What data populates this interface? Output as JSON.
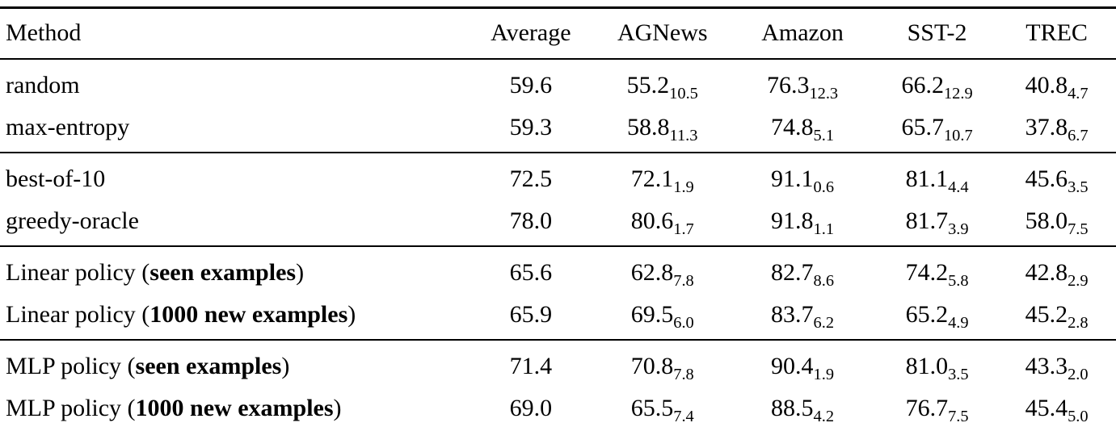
{
  "page": {
    "background": "#ffffff",
    "text_color": "#000000"
  },
  "table": {
    "columns": [
      {
        "label": "Method",
        "align": "left"
      },
      {
        "label": "Average",
        "align": "center"
      },
      {
        "label": "AGNews",
        "align": "center"
      },
      {
        "label": "Amazon",
        "align": "center"
      },
      {
        "label": "SST-2",
        "align": "center"
      },
      {
        "label": "TREC",
        "align": "center"
      }
    ],
    "groups": [
      {
        "rows": [
          {
            "method": [
              {
                "text": "random",
                "bold": false
              }
            ],
            "values": [
              {
                "main": "59.6",
                "sub": ""
              },
              {
                "main": "55.2",
                "sub": "10.5"
              },
              {
                "main": "76.3",
                "sub": "12.3"
              },
              {
                "main": "66.2",
                "sub": "12.9"
              },
              {
                "main": "40.8",
                "sub": "4.7"
              }
            ]
          },
          {
            "method": [
              {
                "text": "max-entropy",
                "bold": false
              }
            ],
            "values": [
              {
                "main": "59.3",
                "sub": ""
              },
              {
                "main": "58.8",
                "sub": "11.3"
              },
              {
                "main": "74.8",
                "sub": "5.1"
              },
              {
                "main": "65.7",
                "sub": "10.7"
              },
              {
                "main": "37.8",
                "sub": "6.7"
              }
            ]
          }
        ]
      },
      {
        "rows": [
          {
            "method": [
              {
                "text": "best-of-10",
                "bold": false
              }
            ],
            "values": [
              {
                "main": "72.5",
                "sub": ""
              },
              {
                "main": "72.1",
                "sub": "1.9"
              },
              {
                "main": "91.1",
                "sub": "0.6"
              },
              {
                "main": "81.1",
                "sub": "4.4"
              },
              {
                "main": "45.6",
                "sub": "3.5"
              }
            ]
          },
          {
            "method": [
              {
                "text": "greedy-oracle",
                "bold": false
              }
            ],
            "values": [
              {
                "main": "78.0",
                "sub": ""
              },
              {
                "main": "80.6",
                "sub": "1.7"
              },
              {
                "main": "91.8",
                "sub": "1.1"
              },
              {
                "main": "81.7",
                "sub": "3.9"
              },
              {
                "main": "58.0",
                "sub": "7.5"
              }
            ]
          }
        ]
      },
      {
        "rows": [
          {
            "method": [
              {
                "text": "Linear policy (",
                "bold": false
              },
              {
                "text": "seen examples",
                "bold": true
              },
              {
                "text": ")",
                "bold": false
              }
            ],
            "values": [
              {
                "main": "65.6",
                "sub": ""
              },
              {
                "main": "62.8",
                "sub": "7.8"
              },
              {
                "main": "82.7",
                "sub": "8.6"
              },
              {
                "main": "74.2",
                "sub": "5.8"
              },
              {
                "main": "42.8",
                "sub": "2.9"
              }
            ]
          },
          {
            "method": [
              {
                "text": "Linear policy (",
                "bold": false
              },
              {
                "text": "1000 new examples",
                "bold": true
              },
              {
                "text": ")",
                "bold": false
              }
            ],
            "values": [
              {
                "main": "65.9",
                "sub": ""
              },
              {
                "main": "69.5",
                "sub": "6.0"
              },
              {
                "main": "83.7",
                "sub": "6.2"
              },
              {
                "main": "65.2",
                "sub": "4.9"
              },
              {
                "main": "45.2",
                "sub": "2.8"
              }
            ]
          }
        ]
      },
      {
        "rows": [
          {
            "method": [
              {
                "text": "MLP policy (",
                "bold": false
              },
              {
                "text": "seen examples",
                "bold": true
              },
              {
                "text": ")",
                "bold": false
              }
            ],
            "values": [
              {
                "main": "71.4",
                "sub": ""
              },
              {
                "main": "70.8",
                "sub": "7.8"
              },
              {
                "main": "90.4",
                "sub": "1.9"
              },
              {
                "main": "81.0",
                "sub": "3.5"
              },
              {
                "main": "43.3",
                "sub": "2.0"
              }
            ]
          },
          {
            "method": [
              {
                "text": "MLP policy (",
                "bold": false
              },
              {
                "text": "1000 new examples",
                "bold": true
              },
              {
                "text": ")",
                "bold": false
              }
            ],
            "values": [
              {
                "main": "69.0",
                "sub": ""
              },
              {
                "main": "65.5",
                "sub": "7.4"
              },
              {
                "main": "88.5",
                "sub": "4.2"
              },
              {
                "main": "76.7",
                "sub": "7.5"
              },
              {
                "main": "45.4",
                "sub": "5.0"
              }
            ]
          }
        ]
      }
    ]
  }
}
